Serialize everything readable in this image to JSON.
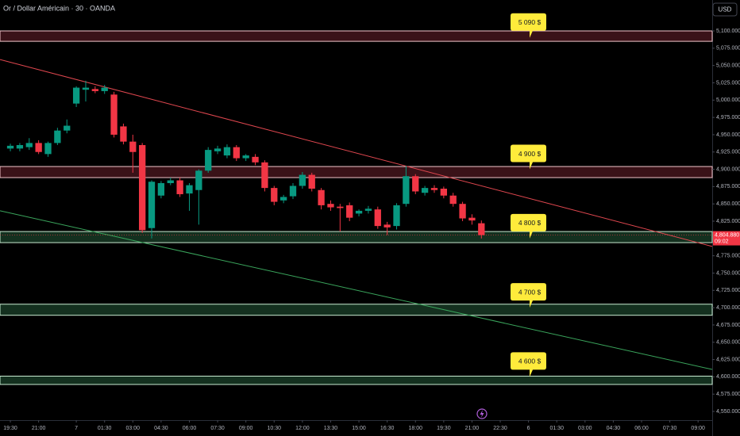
{
  "chart_data": {
    "type": "candlestick",
    "title": "Or / Dollar Américain · 30 · OANDA",
    "currency": "USD",
    "up_color": "#089981",
    "down_color": "#f23645",
    "x": [
      0,
      1,
      2,
      3,
      4,
      5,
      6,
      7,
      8,
      9,
      10,
      11,
      12,
      13,
      14,
      15,
      16,
      17,
      18,
      19,
      20,
      21,
      22,
      23,
      24,
      25,
      26,
      27,
      28,
      29,
      30,
      31,
      32,
      33,
      34,
      35,
      36,
      37,
      38,
      39,
      40,
      41,
      42,
      43,
      44,
      45,
      46,
      47,
      48,
      49,
      50
    ],
    "open": [
      4930,
      4930,
      4932,
      4938,
      4922,
      4938,
      4956,
      4995,
      5015,
      5016,
      5013,
      5008,
      4962,
      4940,
      4935,
      4815,
      4862,
      4880,
      4884,
      4865,
      4870,
      4898,
      4926,
      4920,
      4932,
      4916,
      4918,
      4910,
      4873,
      4855,
      4861,
      4876,
      4892,
      4870,
      4850,
      4846,
      4848,
      4836,
      4840,
      4842,
      4820,
      4818,
      4850,
      4890,
      4866,
      4873,
      4872,
      4862,
      4850,
      4830,
      4822
    ],
    "high": [
      4937,
      4938,
      4945,
      4942,
      4940,
      4960,
      4972,
      5020,
      5028,
      5020,
      5022,
      5012,
      4966,
      4950,
      4938,
      4884,
      4883,
      4888,
      4888,
      4880,
      4900,
      4932,
      4934,
      4936,
      4935,
      4922,
      4922,
      4913,
      4876,
      4863,
      4880,
      4896,
      4895,
      4873,
      4855,
      4850,
      4852,
      4842,
      4847,
      4846,
      4824,
      4851,
      4905,
      4893,
      4876,
      4877,
      4875,
      4866,
      4853,
      4835,
      4826
    ],
    "low": [
      4926,
      4926,
      4928,
      4922,
      4918,
      4935,
      4952,
      4990,
      4998,
      5010,
      5009,
      4946,
      4936,
      4895,
      4808,
      4800,
      4858,
      4877,
      4860,
      4840,
      4820,
      4895,
      4922,
      4916,
      4912,
      4912,
      4906,
      4868,
      4848,
      4851,
      4857,
      4872,
      4868,
      4842,
      4840,
      4810,
      4825,
      4832,
      4836,
      4814,
      4805,
      4813,
      4846,
      4864,
      4862,
      4866,
      4858,
      4846,
      4825,
      4820,
      4800
    ],
    "close": [
      4934,
      4935,
      4938,
      4925,
      4938,
      4956,
      4963,
      5018,
      5018,
      5013,
      5018,
      4950,
      4940,
      4925,
      4812,
      4882,
      4880,
      4884,
      4864,
      4877,
      4898,
      4928,
      4930,
      4932,
      4916,
      4920,
      4910,
      4873,
      4853,
      4860,
      4876,
      4892,
      4872,
      4848,
      4845,
      4844,
      4830,
      4840,
      4843,
      4818,
      4816,
      4848,
      4890,
      4868,
      4873,
      4870,
      4862,
      4850,
      4829,
      4826,
      4804.88
    ],
    "xlim": [
      -1.1,
      74.5
    ],
    "xticks": [
      {
        "value": 0,
        "label": "19:30"
      },
      {
        "value": 3,
        "label": "21:00"
      },
      7,
      {
        "value": 10,
        "label": "01:30"
      },
      {
        "value": 13,
        "label": "03:00"
      },
      {
        "value": 16,
        "label": "04:30"
      },
      {
        "value": 19,
        "label": "06:00"
      },
      {
        "value": 22,
        "label": "07:30"
      },
      {
        "value": 25,
        "label": "09:00"
      },
      {
        "value": 28,
        "label": "10:30"
      },
      {
        "value": 31,
        "label": "12:00"
      },
      {
        "value": 34,
        "label": "13:30"
      },
      {
        "value": 37,
        "label": "15:00"
      },
      {
        "value": 40,
        "label": "16:30"
      },
      {
        "value": 43,
        "label": "18:00"
      },
      {
        "value": 46,
        "label": "19:30"
      },
      {
        "value": 49,
        "label": "21:00"
      },
      {
        "value": 52,
        "label": "22:30"
      },
      {
        "value": 55,
        "label": "6"
      },
      {
        "value": 58,
        "label": "01:30"
      },
      {
        "value": 61,
        "label": "03:00"
      },
      {
        "value": 64,
        "label": "04:30"
      },
      {
        "value": 67,
        "label": "06:00"
      },
      {
        "value": 70,
        "label": "07:30"
      },
      {
        "value": 73,
        "label": "09:00"
      }
    ],
    "ylim": [
      4537.4,
      5144.7
    ],
    "yticks": [
      {
        "value": 4550,
        "label": "4,550.000"
      },
      {
        "value": 4575,
        "label": "4,575.000"
      },
      {
        "value": 4600,
        "label": "4,600.000"
      },
      {
        "value": 4625,
        "label": "4,625.000"
      },
      {
        "value": 4650,
        "label": "4,650.000"
      },
      {
        "value": 4675,
        "label": "4,675.000"
      },
      {
        "value": 4700,
        "label": "4,700.000"
      },
      {
        "value": 4725,
        "label": "4,725.000"
      },
      {
        "value": 4750,
        "label": "4,750.000"
      },
      {
        "value": 4775,
        "label": "4,775.000"
      },
      {
        "value": 4825,
        "label": "4,825.000"
      },
      {
        "value": 4850,
        "label": "4,850.000"
      },
      {
        "value": 4875,
        "label": "4,875.000"
      },
      {
        "value": 4900,
        "label": "4,900.000"
      },
      {
        "value": 4925,
        "label": "4,925.000"
      },
      {
        "value": 4950,
        "label": "4,950.000"
      },
      {
        "value": 4975,
        "label": "4,975.000"
      },
      {
        "value": 5000,
        "label": "5,000.000"
      },
      {
        "value": 5025,
        "label": "5,025.000"
      },
      {
        "value": 5050,
        "label": "5,050.000"
      },
      {
        "value": 5075,
        "label": "5,075.000"
      },
      {
        "value": 5100,
        "label": "5,100.000"
      }
    ],
    "zones": [
      {
        "low": 5085,
        "high": 5100,
        "color": "#3a1218",
        "border": "#f4c7cc"
      },
      {
        "low": 4888,
        "high": 4904,
        "color": "#3a1218",
        "border": "#f4c7cc"
      },
      {
        "low": 4794,
        "high": 4810,
        "color": "#14301f",
        "border": "#c9ecd2"
      },
      {
        "low": 4689,
        "high": 4705,
        "color": "#14301f",
        "border": "#c9ecd2"
      },
      {
        "low": 4589,
        "high": 4601,
        "color": "#14301f",
        "border": "#c9ecd2"
      }
    ],
    "trendlines": [
      {
        "x": [
          -1.1,
          74.5
        ],
        "y": [
          5058.7,
          4788.5
        ],
        "color": "#e0474f"
      },
      {
        "x": [
          -1.1,
          74.5
        ],
        "y": [
          4840,
          4610.7
        ],
        "color": "#3aa55c"
      }
    ],
    "callouts": [
      {
        "value": 5090,
        "label": "5 090 $"
      },
      {
        "value": 4900,
        "label": "4 900 $"
      },
      {
        "value": 4800,
        "label": "4 800 $"
      },
      {
        "value": 4700,
        "label": "4 700 $"
      },
      {
        "value": 4600,
        "label": "4 600 $"
      }
    ],
    "callout_color": "#ffeb3b",
    "last_price": {
      "value": 4804.88,
      "label": "4,804.880"
    },
    "countdown": "09:02"
  }
}
